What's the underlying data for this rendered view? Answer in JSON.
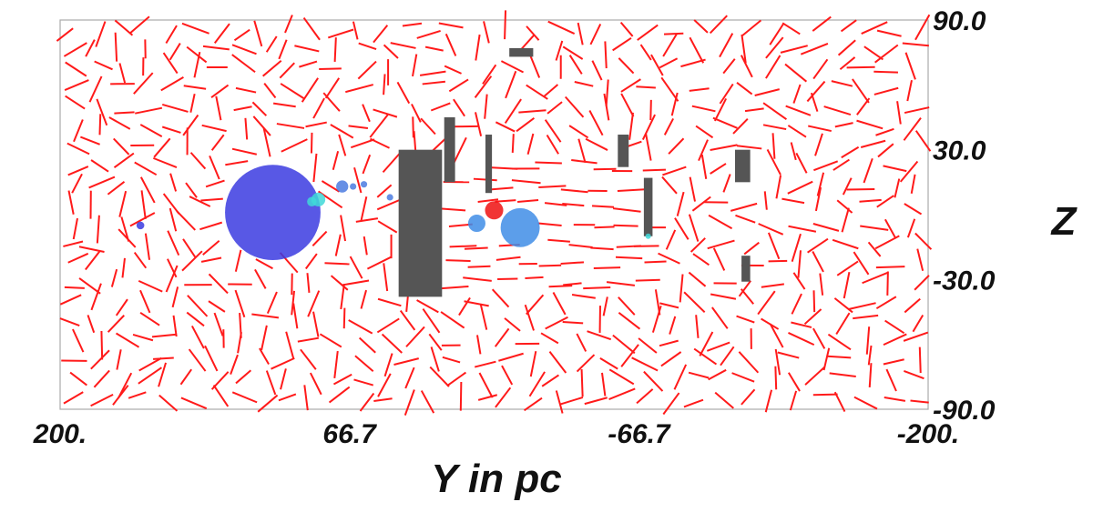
{
  "chart_data": {
    "type": "scatter",
    "title": "",
    "xlabel": "Y in pc",
    "ylabel": "Z",
    "xlim": [
      200,
      -200
    ],
    "ylim": [
      -90,
      90
    ],
    "x_ticks": [
      "200.",
      "66.7",
      "-66.7",
      "-200."
    ],
    "x_tick_values": [
      200,
      66.7,
      -66.7,
      -200
    ],
    "y_ticks": [
      "90.0",
      "30.0",
      "-30.0",
      "-90.0"
    ],
    "y_tick_values": [
      90,
      30,
      -30,
      -90
    ],
    "grid": false,
    "field_vector_color": "#ff1a1a",
    "obstacle_color": "#555555",
    "clouds": [
      {
        "y": 102,
        "z": 1,
        "r": 22,
        "color": "#3b3be0"
      },
      {
        "y": 163,
        "z": -5,
        "r": 1.8,
        "color": "#3b3be0"
      },
      {
        "y": 81,
        "z": 7,
        "r": 3.2,
        "color": "#3fd8d8"
      },
      {
        "y": 84,
        "z": 6,
        "r": 2.2,
        "color": "#3fd8d8"
      },
      {
        "y": 70,
        "z": 13,
        "r": 2.8,
        "color": "#4b7be0"
      },
      {
        "y": 65,
        "z": 13,
        "r": 1.5,
        "color": "#4b7be0"
      },
      {
        "y": 60,
        "z": 14,
        "r": 1.5,
        "color": "#4b7be0"
      },
      {
        "y": 48,
        "z": 8,
        "r": 1.5,
        "color": "#4b7be0"
      },
      {
        "y": 8,
        "z": -4,
        "r": 4,
        "color": "#3f8de6"
      },
      {
        "y": -12,
        "z": -6,
        "r": 9,
        "color": "#3f8de6"
      },
      {
        "y": 0,
        "z": 2,
        "r": 4.2,
        "color": "#ee1111"
      },
      {
        "y": -71,
        "z": -10,
        "r": 1.2,
        "color": "#3fd8d8"
      }
    ],
    "obstacles": [
      {
        "y0": 44,
        "y1": 24,
        "z0": -38,
        "z1": 30
      },
      {
        "y0": 23,
        "y1": 18,
        "z0": 15,
        "z1": 45
      },
      {
        "y0": 4,
        "y1": 1,
        "z0": 10,
        "z1": 37
      },
      {
        "y0": -7,
        "y1": -18,
        "z0": 73,
        "z1": 77
      },
      {
        "y0": -57,
        "y1": -62,
        "z0": 22,
        "z1": 37
      },
      {
        "y0": -69,
        "y1": -73,
        "z0": -10,
        "z1": 17
      },
      {
        "y0": -111,
        "y1": -118,
        "z0": 15,
        "z1": 30
      },
      {
        "y0": -114,
        "y1": -118,
        "z0": -31,
        "z1": -19
      }
    ]
  }
}
